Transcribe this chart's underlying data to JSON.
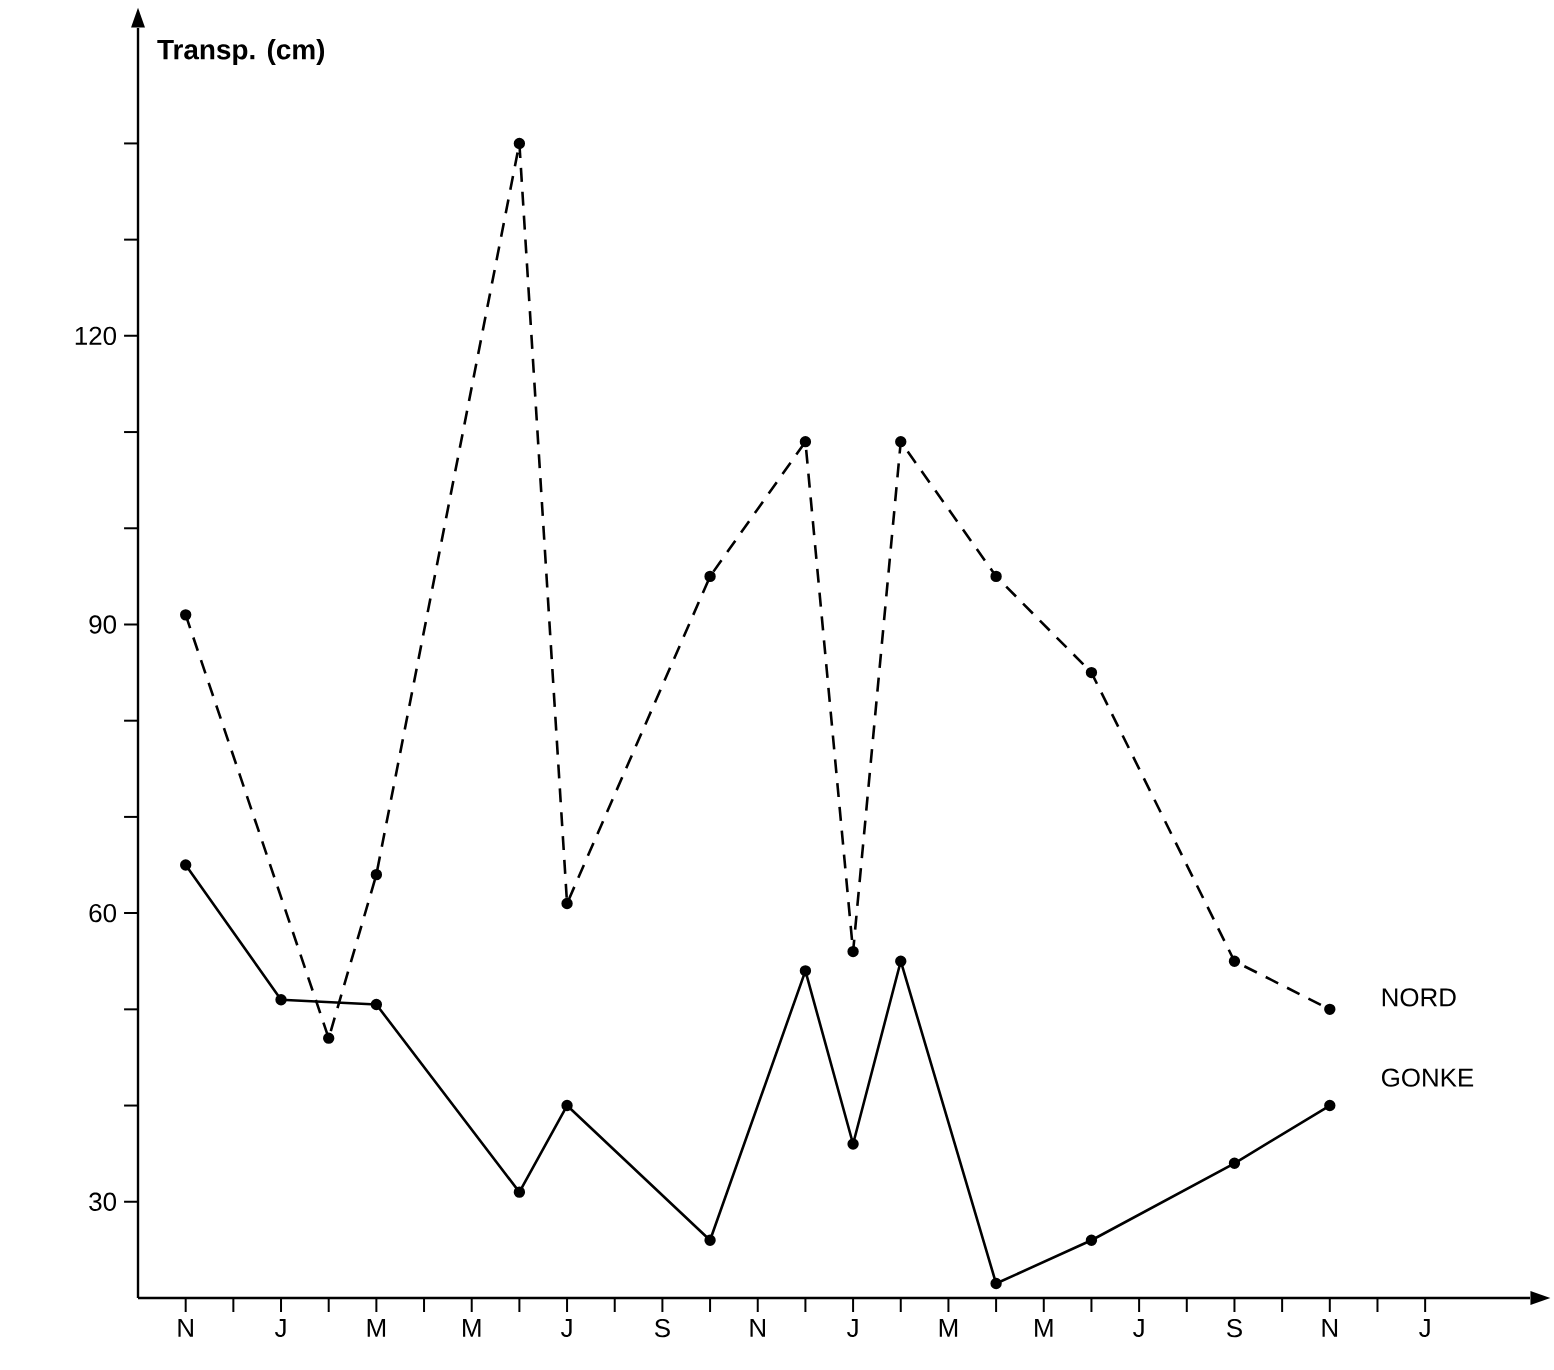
{
  "chart_data": {
    "type": "line",
    "ylabel": "Transp. (cm)",
    "categories": [
      "N",
      null,
      "J",
      null,
      "M",
      null,
      "M",
      null,
      "J",
      null,
      "S",
      null,
      "N",
      null,
      "J",
      null,
      "M",
      null,
      "M",
      null,
      "J",
      null,
      "S",
      null,
      "N",
      null,
      "J"
    ],
    "ylim": [
      20,
      152
    ],
    "yticks": [
      30,
      {
        "value": 40,
        "label": null
      },
      {
        "value": 50,
        "label": null
      },
      60,
      {
        "value": 70,
        "label": null
      },
      {
        "value": 80,
        "label": null
      },
      90,
      {
        "value": 100,
        "label": null
      },
      {
        "value": 110,
        "label": null
      },
      120,
      {
        "value": 130,
        "label": null
      },
      {
        "value": 140,
        "label": null
      }
    ],
    "marker": "circle",
    "legend": false,
    "grid": false,
    "series": [
      {
        "name": "NORD",
        "color": "#000000",
        "line_style": "dashed",
        "values": [
          91,
          null,
          null,
          47,
          64,
          null,
          null,
          140,
          61,
          null,
          null,
          95,
          null,
          109,
          56,
          109,
          null,
          95,
          null,
          85,
          null,
          null,
          55,
          null,
          50,
          null,
          null
        ]
      },
      {
        "name": "GONKE",
        "color": "#000000",
        "line_style": "solid",
        "values": [
          65,
          null,
          51,
          null,
          50.5,
          null,
          null,
          31,
          40,
          null,
          null,
          26,
          null,
          54,
          36,
          55,
          null,
          21.5,
          null,
          26,
          null,
          null,
          34,
          null,
          40,
          null,
          null
        ]
      }
    ]
  }
}
